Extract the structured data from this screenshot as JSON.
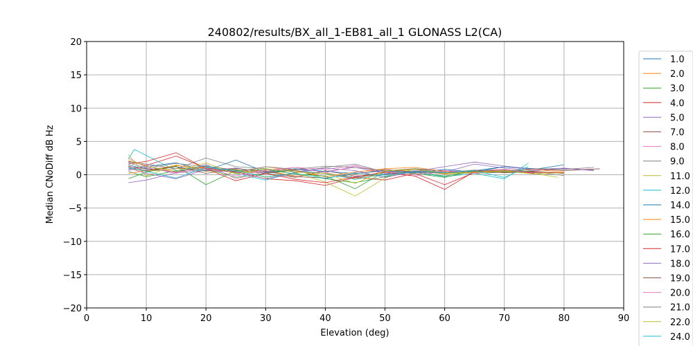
{
  "chart_data": {
    "type": "line",
    "title": "240802/results/BX_all_1-EB81_all_1 GLONASS L2(CA)",
    "xlabel": "Elevation (deg)",
    "ylabel": "Median CNoDiff dB Hz",
    "xlim": [
      0,
      90
    ],
    "ylim": [
      -20,
      20
    ],
    "xticks": [
      0,
      10,
      20,
      30,
      40,
      50,
      60,
      70,
      80,
      90
    ],
    "yticks": [
      -20,
      -15,
      -10,
      -5,
      0,
      5,
      10,
      15,
      20
    ],
    "grid": true,
    "legend_position": "right-outside",
    "series": [
      {
        "name": "1.0",
        "color": "#1f77b4",
        "x": [
          7,
          10,
          15,
          20,
          25,
          30,
          35,
          40,
          45,
          50,
          55,
          60,
          65,
          70,
          75
        ],
        "y": [
          1.5,
          0.8,
          1.2,
          0.5,
          1.0,
          0.3,
          0.6,
          0.2,
          -0.4,
          0.1,
          0.5,
          0.2,
          0.6,
          1.2,
          0.9
        ]
      },
      {
        "name": "2.0",
        "color": "#ff7f0e",
        "x": [
          7,
          10,
          15,
          20,
          25,
          30,
          35,
          40,
          45,
          50,
          55,
          60,
          65,
          70,
          75,
          80
        ],
        "y": [
          1.0,
          0.5,
          0.9,
          1.1,
          0.2,
          0.6,
          -0.2,
          0.3,
          -0.6,
          0.4,
          0.8,
          0.1,
          0.5,
          0.3,
          0.4,
          0.2
        ]
      },
      {
        "name": "3.0",
        "color": "#2ca02c",
        "x": [
          7,
          10,
          15,
          20,
          25,
          30,
          35,
          40,
          45,
          50,
          55,
          60,
          65,
          70,
          75
        ],
        "y": [
          0.5,
          -0.3,
          0.6,
          0.9,
          -0.4,
          0.2,
          0.7,
          -0.6,
          -1.2,
          -0.3,
          0.4,
          -0.2,
          0.6,
          0.7,
          0.5
        ]
      },
      {
        "name": "4.0",
        "color": "#d62728",
        "x": [
          7,
          10,
          15,
          20,
          25,
          30,
          35,
          40,
          45,
          50,
          55,
          60,
          65,
          70,
          75,
          80
        ],
        "y": [
          2.0,
          1.4,
          2.8,
          1.0,
          0.5,
          -0.6,
          -0.9,
          -1.6,
          -0.4,
          -0.8,
          0.2,
          -1.5,
          0.3,
          0.6,
          0.4,
          0.3
        ]
      },
      {
        "name": "5.0",
        "color": "#9467bd",
        "x": [
          7,
          10,
          15,
          20,
          25,
          30,
          35,
          40,
          45,
          50,
          55,
          60,
          65,
          70,
          75,
          80,
          85
        ],
        "y": [
          -1.2,
          -0.8,
          0.3,
          0.6,
          1.0,
          0.3,
          0.8,
          0.5,
          1.1,
          0.2,
          0.6,
          0.4,
          1.6,
          1.0,
          0.6,
          0.9,
          0.7
        ]
      },
      {
        "name": "7.0",
        "color": "#8c564b",
        "x": [
          7,
          10,
          15,
          20,
          25,
          30,
          35,
          40,
          45,
          50,
          55,
          60,
          65,
          70,
          75,
          80,
          86
        ],
        "y": [
          1.2,
          0.9,
          0.4,
          1.3,
          0.7,
          0.2,
          -0.4,
          0.6,
          -0.2,
          0.0,
          0.5,
          0.3,
          0.7,
          0.4,
          0.9,
          0.6,
          0.9
        ]
      },
      {
        "name": "8.0",
        "color": "#e377c2",
        "x": [
          7,
          10,
          15,
          20,
          25,
          30,
          35,
          40,
          45,
          50,
          55,
          60,
          65,
          70,
          75
        ],
        "y": [
          2.5,
          1.1,
          0.2,
          1.6,
          -0.6,
          0.5,
          1.1,
          0.8,
          1.4,
          0.2,
          -0.2,
          0.6,
          0.4,
          0.8,
          0.2
        ]
      },
      {
        "name": "9.0",
        "color": "#7f7f7f",
        "x": [
          7,
          10,
          15,
          20,
          25,
          30,
          35,
          40,
          45,
          50,
          55,
          60,
          65,
          70,
          75,
          80
        ],
        "y": [
          1.9,
          1.6,
          0.9,
          2.5,
          1.2,
          0.9,
          0.4,
          1.1,
          1.6,
          0.4,
          0.9,
          0.6,
          0.2,
          0.4,
          0.3,
          -0.1
        ]
      },
      {
        "name": "11.0",
        "color": "#bcbd22",
        "x": [
          7,
          10,
          15,
          20,
          25,
          30,
          35,
          40,
          45,
          50,
          55,
          60,
          65,
          70,
          75,
          79
        ],
        "y": [
          3.0,
          -0.2,
          1.5,
          0.5,
          0.8,
          -0.4,
          0.3,
          -1.1,
          -3.2,
          -0.5,
          0.9,
          0.3,
          0.2,
          0.5,
          0.2,
          -0.4
        ]
      },
      {
        "name": "12.0",
        "color": "#17becf",
        "x": [
          7,
          8,
          10,
          15,
          20,
          25,
          30,
          35,
          40,
          45,
          50,
          55,
          60,
          65,
          70,
          74
        ],
        "y": [
          2.4,
          3.8,
          2.9,
          0.6,
          1.4,
          0.2,
          -0.8,
          0.4,
          0.2,
          -0.7,
          0.1,
          0.4,
          -0.3,
          0.2,
          -0.6,
          1.7
        ]
      },
      {
        "name": "14.0",
        "color": "#1f77b4",
        "x": [
          7,
          10,
          15,
          20,
          25,
          30,
          35,
          40,
          45,
          50,
          55,
          60,
          65,
          70,
          75,
          80
        ],
        "y": [
          0.8,
          1.2,
          1.8,
          0.6,
          2.2,
          0.4,
          0.9,
          0.5,
          0.2,
          0.6,
          0.3,
          0.8,
          0.4,
          1.2,
          0.8,
          1.5
        ]
      },
      {
        "name": "15.0",
        "color": "#ff7f0e",
        "x": [
          7,
          10,
          15,
          20,
          25,
          30,
          35,
          40,
          45,
          50,
          55,
          60,
          65,
          70,
          75,
          80
        ],
        "y": [
          0.2,
          0.6,
          1.4,
          0.9,
          0.3,
          1.2,
          0.6,
          -0.3,
          0.4,
          0.9,
          1.1,
          0.5,
          0.3,
          0.6,
          0.8,
          0.4
        ]
      },
      {
        "name": "16.0",
        "color": "#2ca02c",
        "x": [
          7,
          10,
          15,
          20,
          25,
          30,
          35,
          40,
          45,
          50,
          55,
          60,
          65,
          70,
          75
        ],
        "y": [
          -0.6,
          0.4,
          1.3,
          -1.5,
          0.6,
          0.8,
          0.1,
          -0.2,
          -2.1,
          0.5,
          0.2,
          -0.4,
          0.6,
          0.3,
          0.5
        ]
      },
      {
        "name": "17.0",
        "color": "#d62728",
        "x": [
          7,
          10,
          15,
          20,
          25,
          30,
          35,
          40,
          45,
          50,
          55,
          60,
          65,
          70,
          75
        ],
        "y": [
          1.6,
          2.0,
          3.3,
          0.9,
          -0.9,
          0.2,
          -0.7,
          -1.2,
          -0.3,
          0.4,
          -0.2,
          -2.2,
          0.5,
          0.8,
          0.2
        ]
      },
      {
        "name": "18.0",
        "color": "#9467bd",
        "x": [
          7,
          10,
          15,
          20,
          25,
          30,
          35,
          40,
          45,
          50,
          55,
          60,
          65,
          70,
          75,
          80,
          85
        ],
        "y": [
          1.0,
          0.2,
          -0.6,
          0.8,
          0.4,
          -0.6,
          0.3,
          1.0,
          0.6,
          -0.4,
          0.5,
          1.2,
          1.9,
          1.3,
          0.8,
          1.0,
          0.6
        ]
      },
      {
        "name": "19.0",
        "color": "#8c564b",
        "x": [
          7,
          10,
          15,
          20,
          25,
          30,
          35,
          40,
          45,
          50,
          55,
          60,
          65,
          70,
          75,
          80
        ],
        "y": [
          1.3,
          0.6,
          1.2,
          0.2,
          0.9,
          0.5,
          -0.3,
          -0.5,
          0.1,
          0.8,
          0.4,
          0.2,
          0.6,
          0.3,
          0.5,
          0.2
        ]
      },
      {
        "name": "20.0",
        "color": "#e377c2",
        "x": [
          7,
          10,
          15,
          20,
          25,
          30,
          35,
          40,
          45,
          50,
          55,
          60,
          65,
          70,
          75
        ],
        "y": [
          0.6,
          1.4,
          0.3,
          1.0,
          -0.2,
          0.7,
          1.1,
          0.3,
          1.3,
          0.5,
          0.1,
          0.6,
          0.2,
          0.8,
          0.3
        ]
      },
      {
        "name": "21.0",
        "color": "#7f7f7f",
        "x": [
          7,
          10,
          15,
          20,
          25,
          30,
          35,
          40,
          45,
          50,
          55,
          60,
          65,
          70,
          75,
          80,
          85
        ],
        "y": [
          1.8,
          1.0,
          1.7,
          1.2,
          0.4,
          1.2,
          0.8,
          1.3,
          1.1,
          0.6,
          0.9,
          0.3,
          0.7,
          0.5,
          0.9,
          0.8,
          1.1
        ]
      },
      {
        "name": "22.0",
        "color": "#bcbd22",
        "x": [
          7,
          10,
          15,
          20,
          25,
          30,
          35,
          40,
          45,
          50,
          55,
          60,
          65,
          70,
          75,
          80
        ],
        "y": [
          2.2,
          1.3,
          0.5,
          1.8,
          0.1,
          0.9,
          0.4,
          0.2,
          -1.3,
          0.6,
          0.8,
          0.2,
          0.4,
          0.6,
          0.1,
          0.3
        ]
      },
      {
        "name": "24.0",
        "color": "#17becf",
        "x": [
          7,
          10,
          15,
          20,
          25,
          30,
          35,
          40,
          45,
          50,
          55,
          60,
          65,
          70,
          74
        ],
        "y": [
          1.1,
          0.5,
          -0.5,
          1.1,
          0.6,
          -0.3,
          0.2,
          -0.6,
          0.3,
          -0.2,
          0.5,
          0.3,
          0.6,
          -0.4,
          1.2
        ]
      }
    ]
  }
}
